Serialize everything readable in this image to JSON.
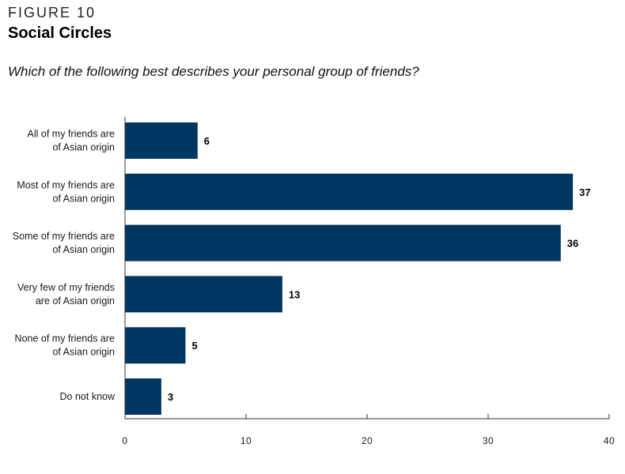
{
  "figure": {
    "label": "FIGURE 10",
    "title": "Social Circles",
    "question": "Which of the following best describes your personal group of friends?"
  },
  "colors": {
    "bar": "#003660",
    "axis": "#333333"
  },
  "chart_data": {
    "type": "bar",
    "orientation": "horizontal",
    "title": "Social Circles",
    "subtitle": "Which of the following best describes your personal group of friends?",
    "categories": [
      [
        "All of my friends are",
        "of Asian origin"
      ],
      [
        "Most of my friends are",
        "of Asian origin"
      ],
      [
        "Some of my friends are",
        "of Asian origin"
      ],
      [
        "Very few of my friends",
        "are of Asian origin"
      ],
      [
        "None of my friends are",
        "of Asian origin"
      ],
      [
        "Do not know"
      ]
    ],
    "values": [
      6,
      37,
      36,
      13,
      5,
      3
    ],
    "xlim": [
      0,
      40
    ],
    "xticks": [
      0,
      10,
      20,
      30,
      40
    ],
    "xlabel": "",
    "ylabel": "",
    "grid": false
  }
}
